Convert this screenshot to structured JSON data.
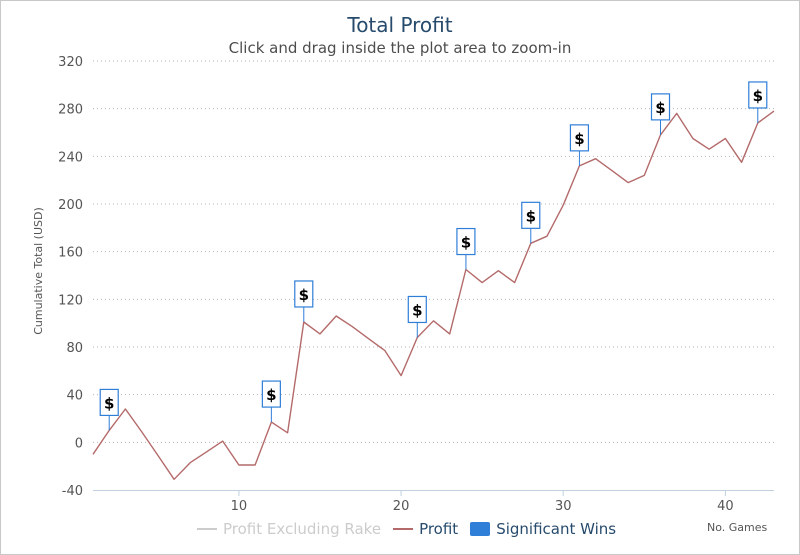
{
  "chart_data": {
    "type": "line",
    "title": "Total Profit",
    "subtitle": "Click and drag inside the plot area to zoom-in",
    "xlabel": "No. Games",
    "ylabel": "Cumulative Total (USD)",
    "xlim": [
      1,
      43
    ],
    "ylim": [
      -40,
      320
    ],
    "x_ticks": [
      10,
      20,
      30,
      40
    ],
    "y_ticks": [
      -40,
      0,
      40,
      80,
      120,
      160,
      200,
      240,
      280,
      320
    ],
    "grid": true,
    "legend_position": "bottom",
    "series": [
      {
        "name": "Profit Excluding Rake",
        "color": "#c8c8c8",
        "visible": false,
        "x": [],
        "values": []
      },
      {
        "name": "Profit",
        "color": "#b46a6a",
        "x": [
          1,
          2,
          3,
          4,
          5,
          6,
          7,
          8,
          9,
          10,
          11,
          12,
          13,
          14,
          15,
          16,
          17,
          18,
          19,
          20,
          21,
          22,
          23,
          24,
          25,
          26,
          27,
          28,
          29,
          30,
          31,
          32,
          33,
          34,
          35,
          36,
          37,
          38,
          39,
          40,
          41,
          42,
          43
        ],
        "values": [
          -10,
          10,
          28,
          9,
          -11,
          -31,
          -17,
          -8,
          1,
          -19,
          -19,
          17,
          8,
          101,
          91,
          106,
          97,
          87,
          77,
          56,
          88,
          102,
          91,
          145,
          134,
          144,
          134,
          167,
          173,
          199,
          232,
          238,
          228,
          218,
          224,
          258,
          276,
          255,
          246,
          255,
          235,
          268,
          278
        ]
      },
      {
        "name": "Significant Wins",
        "color": "#2f7ed8",
        "type": "flags",
        "flag_label": "$",
        "x": [
          2,
          12,
          14,
          21,
          24,
          28,
          31,
          36,
          42
        ],
        "values": [
          10,
          17,
          101,
          88,
          145,
          167,
          232,
          258,
          268
        ]
      }
    ]
  }
}
